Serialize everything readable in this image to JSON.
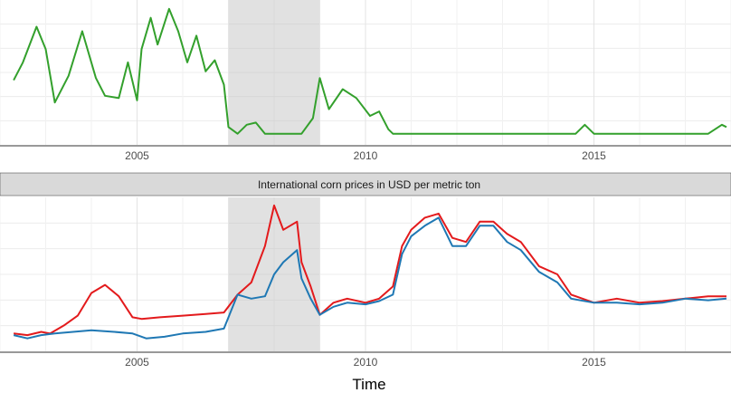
{
  "chart_data": [
    {
      "type": "line",
      "title": "",
      "xlabel": "",
      "ylabel": "",
      "xlim": [
        2002.0,
        2018.0
      ],
      "x_ticks": [
        2005,
        2010,
        2015
      ],
      "x_tick_labels": [
        "2005",
        "2010",
        "2015"
      ],
      "grid": true,
      "shaded_region": {
        "x": [
          2007.0,
          2009.0
        ],
        "color": "#bdbdbd"
      },
      "series": [
        {
          "color": "#33a02c",
          "points": [
            [
              2002.3,
              104
            ],
            [
              2002.5,
              112
            ],
            [
              2002.8,
              128
            ],
            [
              2003.0,
              118
            ],
            [
              2003.2,
              94
            ],
            [
              2003.5,
              106
            ],
            [
              2003.8,
              126
            ],
            [
              2004.1,
              105
            ],
            [
              2004.3,
              97
            ],
            [
              2004.6,
              96
            ],
            [
              2004.8,
              112
            ],
            [
              2005.0,
              95
            ],
            [
              2005.1,
              118
            ],
            [
              2005.3,
              132
            ],
            [
              2005.45,
              120
            ],
            [
              2005.7,
              136
            ],
            [
              2005.9,
              126
            ],
            [
              2006.1,
              112
            ],
            [
              2006.3,
              124
            ],
            [
              2006.5,
              108
            ],
            [
              2006.7,
              113
            ],
            [
              2006.9,
              102
            ],
            [
              2007.0,
              83
            ],
            [
              2007.2,
              80
            ],
            [
              2007.4,
              84
            ],
            [
              2007.6,
              85
            ],
            [
              2007.8,
              80
            ],
            [
              2008.0,
              80
            ],
            [
              2008.3,
              80
            ],
            [
              2008.6,
              80
            ],
            [
              2008.85,
              87
            ],
            [
              2009.0,
              105
            ],
            [
              2009.2,
              91
            ],
            [
              2009.5,
              100
            ],
            [
              2009.8,
              96
            ],
            [
              2010.1,
              88
            ],
            [
              2010.3,
              90
            ],
            [
              2010.5,
              82
            ],
            [
              2010.6,
              80
            ],
            [
              2011.0,
              80
            ],
            [
              2012.0,
              80
            ],
            [
              2013.0,
              80
            ],
            [
              2014.6,
              80
            ],
            [
              2014.8,
              84
            ],
            [
              2015.0,
              80
            ],
            [
              2016.0,
              80
            ],
            [
              2017.5,
              80
            ],
            [
              2017.8,
              84
            ],
            [
              2017.9,
              83
            ]
          ]
        }
      ]
    },
    {
      "type": "line",
      "title": "International corn prices in USD per metric ton",
      "xlabel": "Time",
      "ylabel": "",
      "xlim": [
        2002.0,
        2018.0
      ],
      "x_ticks": [
        2005,
        2010,
        2015
      ],
      "x_tick_labels": [
        "2005",
        "2010",
        "2015"
      ],
      "grid": true,
      "shaded_region": {
        "x": [
          2007.0,
          2009.0
        ],
        "color": "#bdbdbd"
      },
      "series": [
        {
          "color": "#e31a1c",
          "points": [
            [
              2002.3,
              102
            ],
            [
              2002.6,
              100
            ],
            [
              2002.9,
              104
            ],
            [
              2003.1,
              102
            ],
            [
              2003.4,
              112
            ],
            [
              2003.7,
              124
            ],
            [
              2004.0,
              152
            ],
            [
              2004.3,
              162
            ],
            [
              2004.6,
              148
            ],
            [
              2004.9,
              122
            ],
            [
              2005.1,
              120
            ],
            [
              2005.5,
              122
            ],
            [
              2006.0,
              124
            ],
            [
              2006.5,
              126
            ],
            [
              2006.9,
              128
            ],
            [
              2007.2,
              150
            ],
            [
              2007.5,
              165
            ],
            [
              2007.8,
              210
            ],
            [
              2008.0,
              260
            ],
            [
              2008.2,
              230
            ],
            [
              2008.5,
              240
            ],
            [
              2008.6,
              190
            ],
            [
              2008.8,
              160
            ],
            [
              2009.0,
              125
            ],
            [
              2009.3,
              140
            ],
            [
              2009.6,
              145
            ],
            [
              2010.0,
              140
            ],
            [
              2010.3,
              145
            ],
            [
              2010.6,
              160
            ],
            [
              2010.8,
              210
            ],
            [
              2011.0,
              230
            ],
            [
              2011.3,
              245
            ],
            [
              2011.6,
              250
            ],
            [
              2011.9,
              220
            ],
            [
              2012.2,
              215
            ],
            [
              2012.5,
              240
            ],
            [
              2012.8,
              240
            ],
            [
              2013.1,
              225
            ],
            [
              2013.4,
              215
            ],
            [
              2013.8,
              185
            ],
            [
              2014.2,
              175
            ],
            [
              2014.5,
              150
            ],
            [
              2015.0,
              140
            ],
            [
              2015.5,
              145
            ],
            [
              2016.0,
              140
            ],
            [
              2016.5,
              142
            ],
            [
              2017.0,
              145
            ],
            [
              2017.5,
              148
            ],
            [
              2017.9,
              148
            ]
          ]
        },
        {
          "color": "#1f78b4",
          "points": [
            [
              2002.3,
              100
            ],
            [
              2002.6,
              96
            ],
            [
              2002.9,
              100
            ],
            [
              2003.2,
              102
            ],
            [
              2003.6,
              104
            ],
            [
              2004.0,
              106
            ],
            [
              2004.5,
              104
            ],
            [
              2004.9,
              102
            ],
            [
              2005.2,
              96
            ],
            [
              2005.6,
              98
            ],
            [
              2006.0,
              102
            ],
            [
              2006.5,
              104
            ],
            [
              2006.9,
              108
            ],
            [
              2007.2,
              150
            ],
            [
              2007.5,
              145
            ],
            [
              2007.8,
              148
            ],
            [
              2008.0,
              175
            ],
            [
              2008.2,
              190
            ],
            [
              2008.5,
              205
            ],
            [
              2008.6,
              170
            ],
            [
              2008.8,
              145
            ],
            [
              2009.0,
              125
            ],
            [
              2009.3,
              135
            ],
            [
              2009.6,
              140
            ],
            [
              2010.0,
              138
            ],
            [
              2010.3,
              142
            ],
            [
              2010.6,
              150
            ],
            [
              2010.8,
              200
            ],
            [
              2011.0,
              222
            ],
            [
              2011.3,
              235
            ],
            [
              2011.6,
              245
            ],
            [
              2011.9,
              210
            ],
            [
              2012.2,
              210
            ],
            [
              2012.5,
              235
            ],
            [
              2012.8,
              235
            ],
            [
              2013.1,
              215
            ],
            [
              2013.4,
              205
            ],
            [
              2013.8,
              178
            ],
            [
              2014.2,
              165
            ],
            [
              2014.5,
              145
            ],
            [
              2015.0,
              140
            ],
            [
              2015.5,
              140
            ],
            [
              2016.0,
              138
            ],
            [
              2016.5,
              140
            ],
            [
              2017.0,
              145
            ],
            [
              2017.5,
              143
            ],
            [
              2017.9,
              145
            ]
          ]
        }
      ]
    }
  ]
}
